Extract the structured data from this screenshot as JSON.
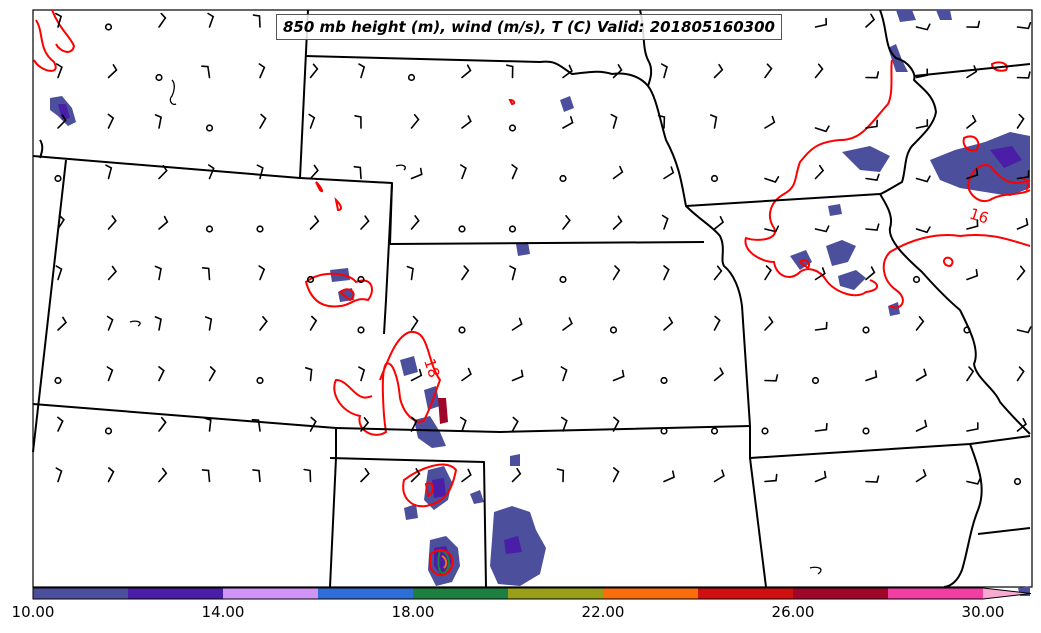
{
  "title": "850 mb height (m), wind (m/s), T (C) Valid: 201805160300",
  "contour_labels": [
    "18",
    "16"
  ],
  "colorbar": {
    "colors": [
      "#4b4f9c",
      "#4a1ea6",
      "#cf94f6",
      "#2f6ed6",
      "#1e8040",
      "#9a9e18",
      "#fa6d0a",
      "#d10f0f",
      "#a0062a",
      "#f23ea2",
      "#f9aad0"
    ],
    "tick_labels": [
      "10.00",
      "14.00",
      "18.00",
      "22.00",
      "26.00",
      "30.00"
    ]
  },
  "wind_barbs": {
    "color": "#000000",
    "calm_marker": "open-circle"
  },
  "isotherm_color": "#ff0000",
  "precip_fill_color": "#4b4f9c"
}
